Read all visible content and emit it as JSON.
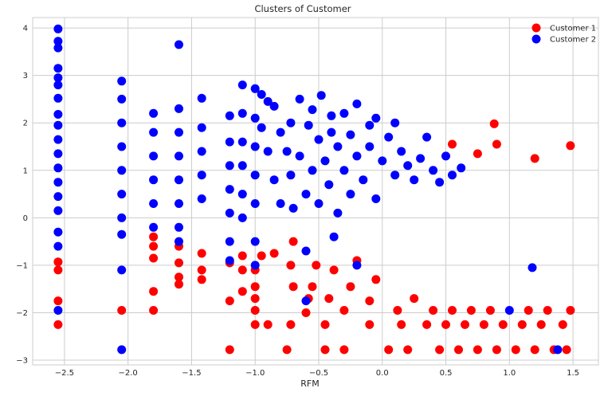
{
  "chart_data": {
    "type": "scatter",
    "title": "Clusters of Customer",
    "xlabel": "RFM",
    "ylabel": "",
    "xlim": [
      -2.75,
      1.7
    ],
    "ylim": [
      -3.1,
      4.22
    ],
    "xticks": [
      -2.5,
      -2.0,
      -1.5,
      -1.0,
      -0.5,
      0.0,
      0.5,
      1.0,
      1.5
    ],
    "xtick_labels": [
      "−2.5",
      "−2.0",
      "−1.5",
      "−1.0",
      "−0.5",
      "0.0",
      "0.5",
      "1.0",
      "1.5"
    ],
    "yticks": [
      -3,
      -2,
      -1,
      0,
      1,
      2,
      3,
      4
    ],
    "ytick_labels": [
      "−3",
      "−2",
      "−1",
      "0",
      "1",
      "2",
      "3",
      "4"
    ],
    "grid": true,
    "legend_position": "top-right",
    "series": [
      {
        "name": "Customer 1",
        "color": "#ff0000",
        "points": [
          [
            -2.55,
            -0.93
          ],
          [
            -2.55,
            -1.1
          ],
          [
            -2.55,
            -1.75
          ],
          [
            -2.55,
            -2.25
          ],
          [
            -2.05,
            -1.95
          ],
          [
            -1.8,
            -1.95
          ],
          [
            -1.8,
            -1.55
          ],
          [
            -1.8,
            -0.85
          ],
          [
            -1.8,
            -0.6
          ],
          [
            -1.8,
            -0.4
          ],
          [
            -1.6,
            -1.4
          ],
          [
            -1.6,
            -1.25
          ],
          [
            -1.6,
            -0.95
          ],
          [
            -1.6,
            -0.6
          ],
          [
            -1.42,
            -1.3
          ],
          [
            -1.42,
            -1.1
          ],
          [
            -1.42,
            -0.75
          ],
          [
            -1.2,
            -2.78
          ],
          [
            -1.2,
            -1.75
          ],
          [
            -1.2,
            -0.95
          ],
          [
            -1.1,
            -1.55
          ],
          [
            -1.1,
            -1.1
          ],
          [
            -1.1,
            -0.8
          ],
          [
            -1.0,
            -2.25
          ],
          [
            -1.0,
            -1.95
          ],
          [
            -1.0,
            -1.7
          ],
          [
            -1.0,
            -1.45
          ],
          [
            -1.0,
            -1.1
          ],
          [
            -0.95,
            -0.8
          ],
          [
            -0.9,
            -2.25
          ],
          [
            -0.85,
            -0.75
          ],
          [
            -0.75,
            -2.78
          ],
          [
            -0.72,
            -2.25
          ],
          [
            -0.7,
            -1.45
          ],
          [
            -0.72,
            -1.0
          ],
          [
            -0.7,
            -0.5
          ],
          [
            -0.6,
            -2.0
          ],
          [
            -0.58,
            -1.7
          ],
          [
            -0.55,
            -1.45
          ],
          [
            -0.52,
            -1.0
          ],
          [
            -0.45,
            -2.78
          ],
          [
            -0.45,
            -2.25
          ],
          [
            -0.42,
            -1.7
          ],
          [
            -0.38,
            -1.1
          ],
          [
            -0.3,
            -2.78
          ],
          [
            -0.3,
            -1.95
          ],
          [
            -0.25,
            -1.45
          ],
          [
            -0.2,
            -0.9
          ],
          [
            -0.1,
            -2.25
          ],
          [
            -0.1,
            -1.75
          ],
          [
            -0.05,
            -1.3
          ],
          [
            0.05,
            -2.78
          ],
          [
            0.12,
            -1.95
          ],
          [
            0.15,
            -2.25
          ],
          [
            0.2,
            -2.78
          ],
          [
            0.25,
            -1.7
          ],
          [
            0.35,
            -2.25
          ],
          [
            0.4,
            -1.95
          ],
          [
            0.45,
            -2.78
          ],
          [
            0.5,
            -2.25
          ],
          [
            0.55,
            -1.95
          ],
          [
            0.6,
            -2.78
          ],
          [
            0.65,
            -2.25
          ],
          [
            0.7,
            -1.95
          ],
          [
            0.75,
            -2.78
          ],
          [
            0.8,
            -2.25
          ],
          [
            0.85,
            -1.95
          ],
          [
            0.9,
            -2.78
          ],
          [
            0.95,
            -2.25
          ],
          [
            1.05,
            -2.78
          ],
          [
            1.1,
            -2.25
          ],
          [
            1.15,
            -1.95
          ],
          [
            1.2,
            -2.78
          ],
          [
            1.25,
            -2.25
          ],
          [
            1.3,
            -1.95
          ],
          [
            1.35,
            -2.78
          ],
          [
            1.42,
            -2.25
          ],
          [
            1.45,
            -2.78
          ],
          [
            1.48,
            -1.95
          ],
          [
            0.88,
            1.98
          ],
          [
            1.48,
            1.52
          ],
          [
            0.55,
            1.55
          ],
          [
            0.9,
            1.55
          ],
          [
            0.75,
            1.35
          ],
          [
            1.2,
            1.25
          ]
        ]
      },
      {
        "name": "Customer 2",
        "color": "#0000ff",
        "points": [
          [
            -2.55,
            3.98
          ],
          [
            -2.55,
            3.72
          ],
          [
            -2.55,
            3.58
          ],
          [
            -2.55,
            3.15
          ],
          [
            -2.55,
            2.95
          ],
          [
            -2.55,
            2.8
          ],
          [
            -2.55,
            2.52
          ],
          [
            -2.55,
            2.18
          ],
          [
            -2.55,
            1.95
          ],
          [
            -2.55,
            1.65
          ],
          [
            -2.55,
            1.35
          ],
          [
            -2.55,
            1.05
          ],
          [
            -2.55,
            0.75
          ],
          [
            -2.55,
            0.45
          ],
          [
            -2.55,
            0.15
          ],
          [
            -2.55,
            -0.3
          ],
          [
            -2.55,
            -0.6
          ],
          [
            -2.55,
            -1.95
          ],
          [
            -2.05,
            2.88
          ],
          [
            -2.05,
            2.5
          ],
          [
            -2.05,
            2.0
          ],
          [
            -2.05,
            1.5
          ],
          [
            -2.05,
            1.0
          ],
          [
            -2.05,
            0.5
          ],
          [
            -2.05,
            0.0
          ],
          [
            -2.05,
            -0.35
          ],
          [
            -2.05,
            -1.1
          ],
          [
            -2.05,
            -2.78
          ],
          [
            -1.8,
            2.2
          ],
          [
            -1.8,
            1.8
          ],
          [
            -1.8,
            1.3
          ],
          [
            -1.8,
            0.8
          ],
          [
            -1.8,
            0.3
          ],
          [
            -1.8,
            -0.2
          ],
          [
            -1.6,
            3.65
          ],
          [
            -1.6,
            2.3
          ],
          [
            -1.6,
            1.8
          ],
          [
            -1.6,
            1.3
          ],
          [
            -1.6,
            0.8
          ],
          [
            -1.6,
            0.3
          ],
          [
            -1.6,
            -0.2
          ],
          [
            -1.6,
            -0.5
          ],
          [
            -1.42,
            2.52
          ],
          [
            -1.42,
            1.9
          ],
          [
            -1.42,
            1.4
          ],
          [
            -1.42,
            0.9
          ],
          [
            -1.42,
            0.4
          ],
          [
            -1.2,
            2.15
          ],
          [
            -1.2,
            1.6
          ],
          [
            -1.2,
            1.1
          ],
          [
            -1.2,
            0.6
          ],
          [
            -1.2,
            0.1
          ],
          [
            -1.2,
            -0.5
          ],
          [
            -1.2,
            -0.9
          ],
          [
            -1.1,
            2.8
          ],
          [
            -1.1,
            2.2
          ],
          [
            -1.1,
            1.6
          ],
          [
            -1.1,
            1.1
          ],
          [
            -1.1,
            0.5
          ],
          [
            -1.1,
            0.0
          ],
          [
            -1.0,
            2.72
          ],
          [
            -1.0,
            2.1
          ],
          [
            -1.0,
            1.5
          ],
          [
            -1.0,
            0.9
          ],
          [
            -1.0,
            0.3
          ],
          [
            -1.0,
            -0.5
          ],
          [
            -1.0,
            -1.0
          ],
          [
            -0.95,
            2.6
          ],
          [
            -0.95,
            1.9
          ],
          [
            -0.9,
            2.45
          ],
          [
            -0.9,
            1.4
          ],
          [
            -0.85,
            2.35
          ],
          [
            -0.85,
            0.8
          ],
          [
            -0.8,
            1.8
          ],
          [
            -0.8,
            0.3
          ],
          [
            -0.75,
            1.4
          ],
          [
            -0.72,
            2.0
          ],
          [
            -0.72,
            0.9
          ],
          [
            -0.7,
            0.2
          ],
          [
            -0.65,
            2.5
          ],
          [
            -0.65,
            1.3
          ],
          [
            -0.6,
            0.5
          ],
          [
            -0.6,
            -0.7
          ],
          [
            -0.58,
            1.95
          ],
          [
            -0.55,
            2.28
          ],
          [
            -0.55,
            1.0
          ],
          [
            -0.5,
            1.65
          ],
          [
            -0.5,
            0.3
          ],
          [
            -0.48,
            2.58
          ],
          [
            -0.45,
            1.2
          ],
          [
            -0.42,
            0.7
          ],
          [
            -0.4,
            2.15
          ],
          [
            -0.4,
            1.8
          ],
          [
            -0.38,
            -0.4
          ],
          [
            -0.35,
            1.5
          ],
          [
            -0.35,
            0.1
          ],
          [
            -0.3,
            2.2
          ],
          [
            -0.3,
            1.0
          ],
          [
            -0.25,
            1.75
          ],
          [
            -0.25,
            0.5
          ],
          [
            -0.2,
            2.4
          ],
          [
            -0.2,
            1.3
          ],
          [
            -0.15,
            0.8
          ],
          [
            -0.1,
            1.95
          ],
          [
            -0.1,
            1.5
          ],
          [
            -0.05,
            2.1
          ],
          [
            -0.05,
            0.4
          ],
          [
            0.0,
            1.2
          ],
          [
            0.05,
            1.7
          ],
          [
            0.1,
            2.0
          ],
          [
            0.1,
            0.9
          ],
          [
            0.15,
            1.4
          ],
          [
            0.2,
            1.1
          ],
          [
            0.25,
            0.8
          ],
          [
            0.3,
            1.25
          ],
          [
            0.35,
            1.7
          ],
          [
            0.4,
            1.0
          ],
          [
            0.45,
            0.75
          ],
          [
            0.5,
            1.3
          ],
          [
            0.55,
            0.9
          ],
          [
            0.62,
            1.05
          ],
          [
            -0.6,
            -1.75
          ],
          [
            -0.2,
            -1.0
          ],
          [
            1.0,
            -1.95
          ],
          [
            1.18,
            -1.05
          ],
          [
            1.38,
            -2.78
          ]
        ]
      }
    ]
  }
}
